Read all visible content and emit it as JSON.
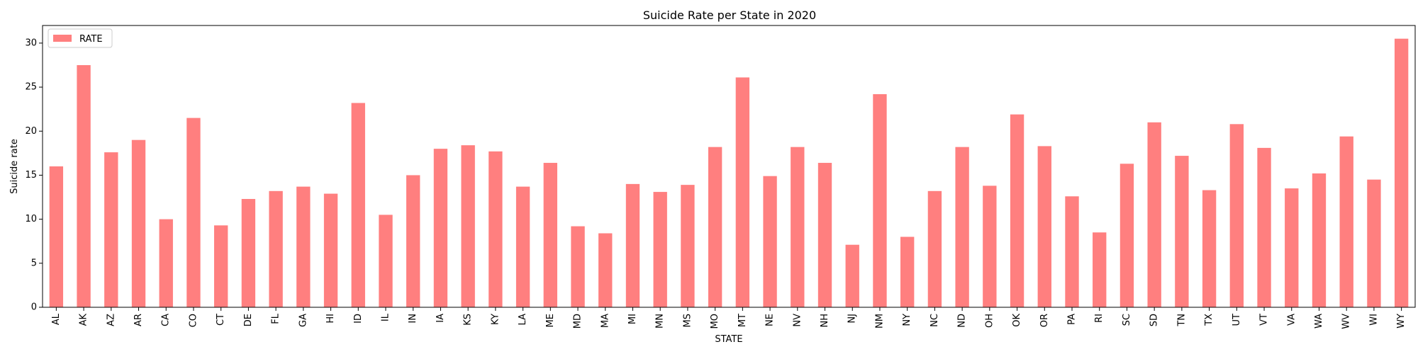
{
  "chart_data": {
    "type": "bar",
    "title": "Suicide Rate per State in 2020",
    "xlabel": "STATE",
    "ylabel": "Suicide rate",
    "ylim": [
      0,
      32
    ],
    "yticks": [
      0,
      5,
      10,
      15,
      20,
      25,
      30
    ],
    "grid": false,
    "legend": {
      "position": "top-left",
      "entries": [
        "RATE"
      ]
    },
    "bar_color": "#ff7f7f",
    "categories": [
      "AL",
      "AK",
      "AZ",
      "AR",
      "CA",
      "CO",
      "CT",
      "DE",
      "FL",
      "GA",
      "HI",
      "ID",
      "IL",
      "IN",
      "IA",
      "KS",
      "KY",
      "LA",
      "ME",
      "MD",
      "MA",
      "MI",
      "MN",
      "MS",
      "MO",
      "MT",
      "NE",
      "NV",
      "NH",
      "NJ",
      "NM",
      "NY",
      "NC",
      "ND",
      "OH",
      "OK",
      "OR",
      "PA",
      "RI",
      "SC",
      "SD",
      "TN",
      "TX",
      "UT",
      "VT",
      "VA",
      "WA",
      "WV",
      "WI",
      "WY"
    ],
    "series": [
      {
        "name": "RATE",
        "values": [
          16.0,
          27.5,
          17.6,
          19.0,
          10.0,
          21.5,
          9.3,
          12.3,
          13.2,
          13.7,
          12.9,
          23.2,
          10.5,
          15.0,
          18.0,
          18.4,
          17.7,
          13.7,
          16.4,
          9.2,
          8.4,
          14.0,
          13.1,
          13.9,
          18.2,
          26.1,
          14.9,
          18.2,
          16.4,
          7.1,
          24.2,
          8.0,
          13.2,
          18.2,
          13.8,
          21.9,
          18.3,
          12.6,
          8.5,
          16.3,
          21.0,
          17.2,
          13.3,
          20.8,
          18.1,
          13.5,
          15.2,
          19.4,
          14.5,
          30.5
        ]
      }
    ]
  }
}
